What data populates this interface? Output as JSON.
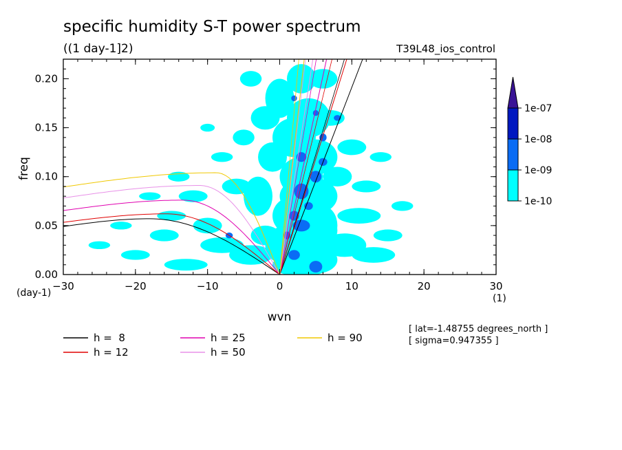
{
  "chart_data": {
    "type": "contour",
    "title": "specific humidity S-T power spectrum",
    "subtitle": "((1 day-1]2)",
    "dataset": "T39L48_ios_control",
    "xlabel": "wvn",
    "ylabel": "freq",
    "x_units": "(1)",
    "y_units": "(day-1)",
    "xlim": [
      -30,
      30
    ],
    "ylim": [
      0,
      0.22
    ],
    "x_ticks": [
      -30,
      -20,
      -10,
      0,
      10,
      20,
      30
    ],
    "x_tick_labels": [
      "−30",
      "−20",
      "−10",
      "0",
      "10",
      "20",
      "30"
    ],
    "y_ticks": [
      0,
      0.05,
      0.1,
      0.15,
      0.2
    ],
    "y_tick_labels": [
      "0.00",
      "0.05",
      "0.10",
      "0.15",
      "0.20"
    ],
    "colorbar": {
      "levels": [
        "1e-10",
        "1e-09",
        "1e-08",
        "1e-07"
      ],
      "colors": [
        "#00ffff",
        "#0a6cf5",
        "#0018c0",
        "#3a1496"
      ]
    },
    "dispersion_curves": [
      {
        "label": "h =  8",
        "color": "#000000",
        "kelvin_x_at_top": 11.5,
        "rossby_max": 0.057
      },
      {
        "label": "h = 12",
        "color": "#e00000",
        "kelvin_x_at_top": 9.3,
        "rossby_max": 0.062
      },
      {
        "label": "h = 25",
        "color": "#e000b0",
        "kelvin_x_at_top": 6.5,
        "rossby_max": 0.076
      },
      {
        "label": "h = 50",
        "color": "#e890e8",
        "kelvin_x_at_top": 4.6,
        "rossby_max": 0.091
      },
      {
        "label": "h = 90",
        "color": "#f0c800",
        "kelvin_x_at_top": 3.4,
        "rossby_max": 0.104
      }
    ],
    "contour_blobs_cyan": [
      [
        3,
        0.01,
        4,
        0.012
      ],
      [
        5,
        0.015,
        3,
        0.014
      ],
      [
        1,
        0.03,
        3,
        0.02
      ],
      [
        4,
        0.045,
        4,
        0.02
      ],
      [
        2,
        0.06,
        3,
        0.02
      ],
      [
        4,
        0.08,
        4,
        0.02
      ],
      [
        3,
        0.1,
        3,
        0.02
      ],
      [
        5,
        0.12,
        3,
        0.018
      ],
      [
        2,
        0.14,
        3,
        0.02
      ],
      [
        4,
        0.16,
        3,
        0.02
      ],
      [
        0,
        0.18,
        2,
        0.02
      ],
      [
        3,
        0.2,
        2,
        0.015
      ],
      [
        6,
        0.05,
        2,
        0.02
      ],
      [
        -2,
        0.04,
        2,
        0.01
      ],
      [
        -3,
        0.08,
        2,
        0.02
      ],
      [
        -1,
        0.12,
        2,
        0.015
      ],
      [
        -4,
        0.02,
        3,
        0.01
      ],
      [
        -8,
        0.03,
        3,
        0.008
      ],
      [
        -10,
        0.05,
        2,
        0.008
      ],
      [
        -13,
        0.01,
        3,
        0.006
      ],
      [
        -16,
        0.04,
        2,
        0.006
      ],
      [
        -20,
        0.02,
        2,
        0.005
      ],
      [
        -6,
        0.09,
        2,
        0.008
      ],
      [
        -12,
        0.08,
        2,
        0.006
      ],
      [
        -14,
        0.1,
        1.5,
        0.005
      ],
      [
        9,
        0.03,
        3,
        0.012
      ],
      [
        11,
        0.06,
        3,
        0.008
      ],
      [
        13,
        0.02,
        3,
        0.008
      ],
      [
        8,
        0.1,
        2,
        0.01
      ],
      [
        10,
        0.13,
        2,
        0.008
      ],
      [
        15,
        0.04,
        2,
        0.006
      ],
      [
        12,
        0.09,
        2,
        0.006
      ],
      [
        7,
        0.16,
        2,
        0.008
      ],
      [
        -2,
        0.16,
        2,
        0.012
      ],
      [
        -5,
        0.14,
        1.5,
        0.008
      ],
      [
        -4,
        0.2,
        1.5,
        0.008
      ],
      [
        6,
        0.2,
        2,
        0.01
      ],
      [
        -8,
        0.12,
        1.5,
        0.005
      ],
      [
        -15,
        0.06,
        2,
        0.005
      ],
      [
        -22,
        0.05,
        1.5,
        0.004
      ],
      [
        -18,
        0.08,
        1.5,
        0.004
      ],
      [
        14,
        0.12,
        1.5,
        0.005
      ],
      [
        17,
        0.07,
        1.5,
        0.005
      ],
      [
        -10,
        0.15,
        1,
        0.004
      ],
      [
        -25,
        0.03,
        1.5,
        0.004
      ]
    ],
    "contour_blobs_blue": [
      [
        5,
        0.008,
        0.9,
        0.006
      ],
      [
        2,
        0.02,
        0.8,
        0.005
      ],
      [
        3,
        0.05,
        1.2,
        0.006
      ],
      [
        2,
        0.06,
        0.7,
        0.005
      ],
      [
        3,
        0.085,
        1,
        0.008
      ],
      [
        5,
        0.1,
        0.8,
        0.006
      ],
      [
        3,
        0.12,
        0.7,
        0.005
      ],
      [
        6,
        0.115,
        0.6,
        0.004
      ],
      [
        4,
        0.07,
        0.6,
        0.004
      ],
      [
        1,
        0.04,
        0.5,
        0.004
      ],
      [
        6,
        0.14,
        0.5,
        0.004
      ],
      [
        -7,
        0.04,
        0.5,
        0.003
      ],
      [
        8,
        0.16,
        0.5,
        0.003
      ],
      [
        5,
        0.165,
        0.4,
        0.003
      ],
      [
        2,
        0.18,
        0.4,
        0.003
      ]
    ]
  },
  "info": {
    "lat": "[ lat=-1.48755 degrees_north ]",
    "sigma": "[ sigma=0.947355 ]"
  }
}
